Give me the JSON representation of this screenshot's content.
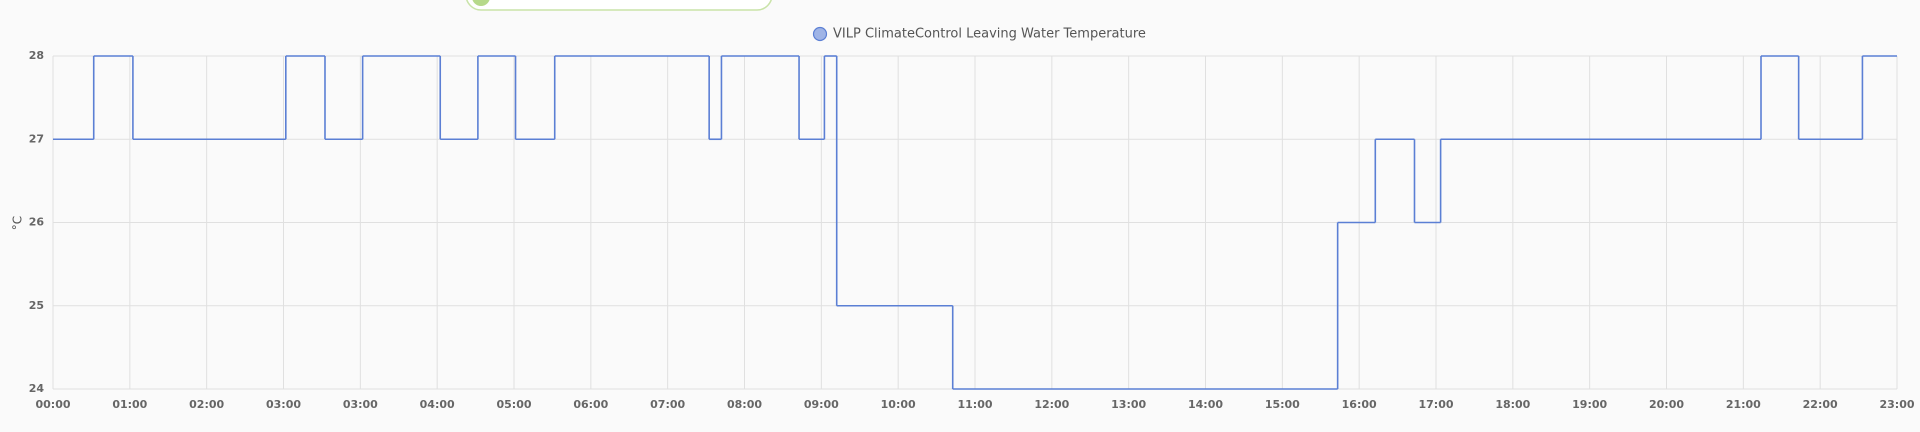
{
  "chart_data": {
    "type": "line",
    "step": true,
    "y_label": "°C",
    "series": [
      {
        "name": "VILP ClimateControl Leaving Water Temperature",
        "color": "#5b7fd4",
        "x": [
          0,
          0.53,
          1.04,
          3.03,
          3.54,
          4.03,
          5.04,
          5.53,
          6.02,
          6.53,
          8.54,
          8.7,
          9.71,
          10.04,
          10.2,
          11.71,
          16.72,
          17.21,
          17.72,
          18.06,
          22.23,
          22.72,
          23.55
        ],
        "values": [
          27,
          28,
          27,
          28,
          27,
          28,
          27,
          28,
          27,
          28,
          27,
          28,
          27,
          28,
          25,
          24,
          26,
          27,
          26,
          27,
          28,
          27,
          28
        ]
      }
    ],
    "xlim": [
      0,
      24
    ],
    "xticks": [
      {
        "value": 0,
        "label": "00:00"
      },
      {
        "value": 1,
        "label": "01:00"
      },
      {
        "value": 2,
        "label": "02:00"
      },
      {
        "value": 3,
        "label": "03:00"
      },
      {
        "value": 4,
        "label": "03:00"
      },
      {
        "value": 5,
        "label": "04:00"
      },
      {
        "value": 6,
        "label": "05:00"
      },
      {
        "value": 7,
        "label": "06:00"
      },
      {
        "value": 8,
        "label": "07:00"
      },
      {
        "value": 9,
        "label": "08:00"
      },
      {
        "value": 10,
        "label": "09:00"
      },
      {
        "value": 11,
        "label": "10:00"
      },
      {
        "value": 12,
        "label": "11:00"
      },
      {
        "value": 13,
        "label": "12:00"
      },
      {
        "value": 14,
        "label": "13:00"
      },
      {
        "value": 15,
        "label": "14:00"
      },
      {
        "value": 16,
        "label": "15:00"
      },
      {
        "value": 17,
        "label": "16:00"
      },
      {
        "value": 18,
        "label": "17:00"
      },
      {
        "value": 19,
        "label": "18:00"
      },
      {
        "value": 20,
        "label": "19:00"
      },
      {
        "value": 21,
        "label": "20:00"
      },
      {
        "value": 22,
        "label": "21:00"
      },
      {
        "value": 23,
        "label": "22:00"
      },
      {
        "value": 24,
        "label": "23:00"
      }
    ],
    "ylim": [
      24,
      28
    ],
    "yticks": [
      24,
      25,
      26,
      27,
      28
    ],
    "grid": true
  }
}
